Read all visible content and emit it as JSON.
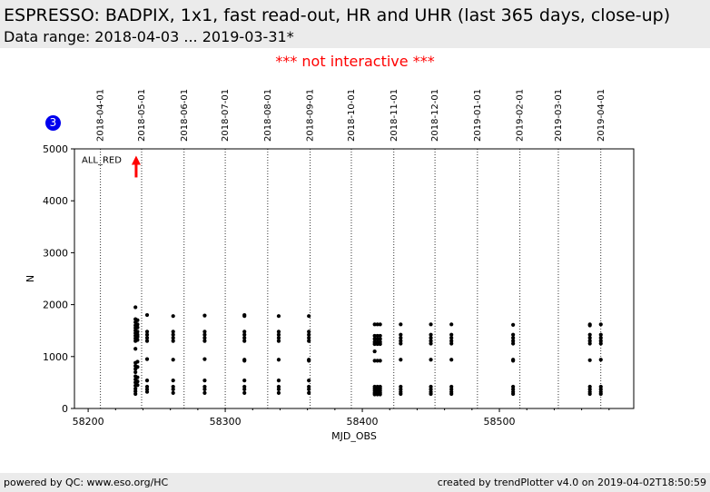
{
  "header": {
    "title": "ESPRESSO: BADPIX, 1x1, fast read-out, HR and UHR (last 365 days, close-up)",
    "subtitle": "Data range: 2018-04-03 ... 2019-03-31*"
  },
  "notice": "*** not interactive ***",
  "badge": "3",
  "footer": {
    "left": "powered by QC: www.eso.org/HC",
    "right": "created by trendPlotter v4.0 on 2019-04-02T18:50:59"
  },
  "colors": {
    "points": "#000000",
    "marker": "#ff0000",
    "badge": "#0000ee",
    "notice": "#ff0000",
    "band": "#ebebeb"
  },
  "chart_data": {
    "type": "scatter",
    "xlabel": "MJD_OBS",
    "ylabel": "N",
    "xlim": [
      58190,
      58598
    ],
    "ylim": [
      0,
      5000
    ],
    "x_ticks": [
      58200,
      58300,
      58400,
      58500
    ],
    "y_ticks": [
      0,
      1000,
      2000,
      3000,
      4000,
      5000
    ],
    "date_markers": [
      {
        "label": "2018-04-01",
        "mjd": 58209
      },
      {
        "label": "2018-05-01",
        "mjd": 58239
      },
      {
        "label": "2018-06-01",
        "mjd": 58270
      },
      {
        "label": "2018-07-01",
        "mjd": 58300
      },
      {
        "label": "2018-08-01",
        "mjd": 58331
      },
      {
        "label": "2018-09-01",
        "mjd": 58362
      },
      {
        "label": "2018-10-01",
        "mjd": 58392
      },
      {
        "label": "2018-11-01",
        "mjd": 58423
      },
      {
        "label": "2018-12-01",
        "mjd": 58453
      },
      {
        "label": "2019-01-01",
        "mjd": 58484
      },
      {
        "label": "2019-02-01",
        "mjd": 58515
      },
      {
        "label": "2019-03-01",
        "mjd": 58543
      },
      {
        "label": "2019-04-01",
        "mjd": 58574
      }
    ],
    "annotation": {
      "text": "ALL_RED",
      "mjd": 58235,
      "y": 4800
    },
    "grid": "vertical dotted lines at month starts",
    "points": [
      [
        58234.5,
        1950
      ],
      [
        58234.5,
        1720
      ],
      [
        58234.5,
        1660
      ],
      [
        58234.5,
        1600
      ],
      [
        58234.5,
        1550
      ],
      [
        58234.5,
        1500
      ],
      [
        58234.5,
        1450
      ],
      [
        58234.5,
        1400
      ],
      [
        58234.5,
        1350
      ],
      [
        58234.5,
        1300
      ],
      [
        58234.5,
        1150
      ],
      [
        58234.5,
        880
      ],
      [
        58234.5,
        820
      ],
      [
        58234.5,
        760
      ],
      [
        58234.5,
        700
      ],
      [
        58234.5,
        620
      ],
      [
        58234.5,
        560
      ],
      [
        58234.5,
        500
      ],
      [
        58234.5,
        440
      ],
      [
        58234.5,
        380
      ],
      [
        58234.5,
        330
      ],
      [
        58234.5,
        280
      ],
      [
        58236,
        1700
      ],
      [
        58236,
        1620
      ],
      [
        58236,
        1560
      ],
      [
        58236,
        1480
      ],
      [
        58236,
        1420
      ],
      [
        58236,
        1380
      ],
      [
        58236,
        1320
      ],
      [
        58236,
        900
      ],
      [
        58236,
        800
      ],
      [
        58236,
        600
      ],
      [
        58236,
        520
      ],
      [
        58236,
        450
      ],
      [
        58243,
        1800
      ],
      [
        58243,
        1480
      ],
      [
        58243,
        1420
      ],
      [
        58243,
        1360
      ],
      [
        58243,
        1300
      ],
      [
        58243,
        950
      ],
      [
        58243,
        540
      ],
      [
        58243,
        420
      ],
      [
        58243,
        370
      ],
      [
        58243,
        320
      ],
      [
        58262,
        1780
      ],
      [
        58262,
        1480
      ],
      [
        58262,
        1420
      ],
      [
        58262,
        1360
      ],
      [
        58262,
        1300
      ],
      [
        58262,
        940
      ],
      [
        58262,
        540
      ],
      [
        58262,
        420
      ],
      [
        58262,
        370
      ],
      [
        58262,
        300
      ],
      [
        58285,
        1790
      ],
      [
        58285,
        1480
      ],
      [
        58285,
        1420
      ],
      [
        58285,
        1360
      ],
      [
        58285,
        1300
      ],
      [
        58285,
        950
      ],
      [
        58285,
        540
      ],
      [
        58285,
        420
      ],
      [
        58285,
        370
      ],
      [
        58285,
        300
      ],
      [
        58314,
        1800
      ],
      [
        58314,
        1780
      ],
      [
        58314,
        1480
      ],
      [
        58314,
        1420
      ],
      [
        58314,
        1360
      ],
      [
        58314,
        1300
      ],
      [
        58314,
        940
      ],
      [
        58314,
        920
      ],
      [
        58314,
        540
      ],
      [
        58314,
        420
      ],
      [
        58314,
        370
      ],
      [
        58314,
        300
      ],
      [
        58339,
        1780
      ],
      [
        58339,
        1480
      ],
      [
        58339,
        1420
      ],
      [
        58339,
        1360
      ],
      [
        58339,
        1300
      ],
      [
        58339,
        940
      ],
      [
        58339,
        540
      ],
      [
        58339,
        420
      ],
      [
        58339,
        370
      ],
      [
        58339,
        300
      ],
      [
        58361,
        1780
      ],
      [
        58361,
        1480
      ],
      [
        58361,
        1420
      ],
      [
        58361,
        1360
      ],
      [
        58361,
        1300
      ],
      [
        58361,
        940
      ],
      [
        58361,
        920
      ],
      [
        58361,
        540
      ],
      [
        58361,
        420
      ],
      [
        58361,
        370
      ],
      [
        58361,
        300
      ],
      [
        58409,
        1620
      ],
      [
        58409,
        1400
      ],
      [
        58409,
        1340
      ],
      [
        58409,
        1280
      ],
      [
        58409,
        1240
      ],
      [
        58409,
        1100
      ],
      [
        58409,
        920
      ],
      [
        58409,
        420
      ],
      [
        58409,
        380
      ],
      [
        58409,
        340
      ],
      [
        58409,
        300
      ],
      [
        58409,
        270
      ],
      [
        58411,
        1620
      ],
      [
        58411,
        1400
      ],
      [
        58411,
        1340
      ],
      [
        58411,
        1280
      ],
      [
        58411,
        1240
      ],
      [
        58411,
        920
      ],
      [
        58411,
        420
      ],
      [
        58411,
        380
      ],
      [
        58411,
        340
      ],
      [
        58411,
        300
      ],
      [
        58411,
        270
      ],
      [
        58413,
        1620
      ],
      [
        58413,
        1400
      ],
      [
        58413,
        1340
      ],
      [
        58413,
        1280
      ],
      [
        58413,
        1240
      ],
      [
        58413,
        920
      ],
      [
        58413,
        420
      ],
      [
        58413,
        380
      ],
      [
        58413,
        340
      ],
      [
        58413,
        300
      ],
      [
        58413,
        270
      ],
      [
        58428,
        1620
      ],
      [
        58428,
        1420
      ],
      [
        58428,
        1360
      ],
      [
        58428,
        1300
      ],
      [
        58428,
        1250
      ],
      [
        58428,
        940
      ],
      [
        58428,
        420
      ],
      [
        58428,
        370
      ],
      [
        58428,
        320
      ],
      [
        58428,
        280
      ],
      [
        58450,
        1620
      ],
      [
        58450,
        1420
      ],
      [
        58450,
        1360
      ],
      [
        58450,
        1300
      ],
      [
        58450,
        1250
      ],
      [
        58450,
        940
      ],
      [
        58450,
        420
      ],
      [
        58450,
        370
      ],
      [
        58450,
        320
      ],
      [
        58450,
        280
      ],
      [
        58465,
        1620
      ],
      [
        58465,
        1420
      ],
      [
        58465,
        1360
      ],
      [
        58465,
        1300
      ],
      [
        58465,
        1250
      ],
      [
        58465,
        940
      ],
      [
        58465,
        420
      ],
      [
        58465,
        370
      ],
      [
        58465,
        320
      ],
      [
        58465,
        280
      ],
      [
        58510,
        1610
      ],
      [
        58510,
        1420
      ],
      [
        58510,
        1360
      ],
      [
        58510,
        1300
      ],
      [
        58510,
        1250
      ],
      [
        58510,
        940
      ],
      [
        58510,
        920
      ],
      [
        58510,
        420
      ],
      [
        58510,
        370
      ],
      [
        58510,
        320
      ],
      [
        58510,
        280
      ],
      [
        58566,
        1620
      ],
      [
        58566,
        1600
      ],
      [
        58566,
        1420
      ],
      [
        58566,
        1360
      ],
      [
        58566,
        1300
      ],
      [
        58566,
        1250
      ],
      [
        58566,
        930
      ],
      [
        58566,
        420
      ],
      [
        58566,
        370
      ],
      [
        58566,
        320
      ],
      [
        58566,
        280
      ],
      [
        58574,
        1620
      ],
      [
        58574,
        1420
      ],
      [
        58574,
        1360
      ],
      [
        58574,
        1300
      ],
      [
        58574,
        1250
      ],
      [
        58574,
        940
      ],
      [
        58574,
        420
      ],
      [
        58574,
        370
      ],
      [
        58574,
        320
      ],
      [
        58574,
        280
      ]
    ]
  }
}
